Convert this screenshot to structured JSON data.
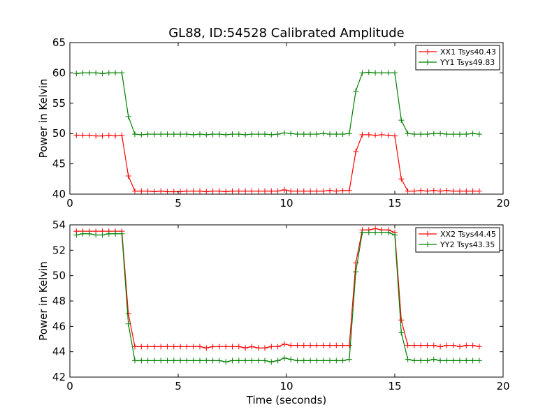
{
  "chart_data": [
    {
      "type": "line",
      "title": "GL88, ID:54528 Calibrated Amplitude",
      "xlabel": "",
      "ylabel": "Power in Kelvin",
      "xlim": [
        0,
        20
      ],
      "ylim": [
        40,
        65
      ],
      "xticks": [
        "0",
        "5",
        "10",
        "15",
        "20"
      ],
      "yticks": [
        "40",
        "45",
        "50",
        "55",
        "60",
        "65"
      ],
      "legend_position": "top-right",
      "grid": false,
      "series": [
        {
          "name": "XX1 Tsys40.43",
          "color": "#ff0000",
          "x": [
            0.3,
            0.6,
            0.9,
            1.2,
            1.5,
            1.8,
            2.1,
            2.4,
            2.7,
            3.0,
            3.3,
            3.6,
            3.9,
            4.2,
            4.5,
            4.8,
            5.1,
            5.4,
            5.7,
            6.0,
            6.3,
            6.6,
            6.9,
            7.2,
            7.5,
            7.8,
            8.1,
            8.4,
            8.7,
            9.0,
            9.3,
            9.6,
            9.9,
            10.2,
            10.5,
            10.8,
            11.1,
            11.4,
            11.7,
            12.0,
            12.3,
            12.6,
            12.9,
            13.2,
            13.5,
            13.8,
            14.1,
            14.4,
            14.7,
            15.0,
            15.3,
            15.6,
            15.9,
            16.2,
            16.5,
            16.8,
            17.1,
            17.4,
            17.7,
            18.0,
            18.3,
            18.6,
            18.9
          ],
          "values": [
            49.7,
            49.7,
            49.7,
            49.6,
            49.6,
            49.7,
            49.6,
            49.7,
            43.0,
            40.5,
            40.5,
            40.5,
            40.4,
            40.5,
            40.4,
            40.4,
            40.4,
            40.5,
            40.5,
            40.5,
            40.4,
            40.5,
            40.5,
            40.4,
            40.5,
            40.5,
            40.5,
            40.5,
            40.5,
            40.5,
            40.5,
            40.5,
            40.7,
            40.5,
            40.5,
            40.5,
            40.5,
            40.5,
            40.5,
            40.6,
            40.5,
            40.6,
            40.6,
            47.0,
            49.8,
            49.8,
            49.7,
            49.8,
            49.7,
            49.6,
            42.5,
            40.5,
            40.5,
            40.6,
            40.5,
            40.6,
            40.5,
            40.6,
            40.5,
            40.5,
            40.5,
            40.5,
            40.5
          ]
        },
        {
          "name": "YY1 Tsys49.83",
          "color": "#008000",
          "x": [
            0.3,
            0.6,
            0.9,
            1.2,
            1.5,
            1.8,
            2.1,
            2.4,
            2.7,
            3.0,
            3.3,
            3.6,
            3.9,
            4.2,
            4.5,
            4.8,
            5.1,
            5.4,
            5.7,
            6.0,
            6.3,
            6.6,
            6.9,
            7.2,
            7.5,
            7.8,
            8.1,
            8.4,
            8.7,
            9.0,
            9.3,
            9.6,
            9.9,
            10.2,
            10.5,
            10.8,
            11.1,
            11.4,
            11.7,
            12.0,
            12.3,
            12.6,
            12.9,
            13.2,
            13.5,
            13.8,
            14.1,
            14.4,
            14.7,
            15.0,
            15.3,
            15.6,
            15.9,
            16.2,
            16.5,
            16.8,
            17.1,
            17.4,
            17.7,
            18.0,
            18.3,
            18.6,
            18.9
          ],
          "values": [
            59.9,
            60.0,
            60.0,
            60.0,
            59.9,
            60.0,
            60.0,
            60.0,
            52.8,
            49.9,
            49.8,
            49.9,
            49.9,
            49.9,
            49.9,
            49.9,
            49.9,
            49.9,
            49.8,
            49.9,
            49.8,
            49.9,
            49.9,
            49.8,
            49.9,
            49.9,
            49.8,
            49.9,
            49.9,
            49.9,
            49.8,
            49.9,
            50.1,
            50.0,
            49.9,
            49.9,
            49.9,
            49.9,
            50.0,
            49.9,
            49.9,
            49.9,
            50.0,
            57.0,
            60.0,
            60.1,
            60.0,
            60.0,
            60.0,
            60.0,
            52.2,
            50.0,
            49.9,
            49.9,
            49.9,
            50.0,
            50.0,
            49.9,
            49.9,
            49.9,
            49.9,
            50.0,
            49.9
          ]
        }
      ]
    },
    {
      "type": "line",
      "title": "",
      "xlabel": "Time (seconds)",
      "ylabel": "Power in Kelvin",
      "xlim": [
        0,
        20
      ],
      "ylim": [
        42,
        54
      ],
      "xticks": [
        "0",
        "5",
        "10",
        "15",
        "20"
      ],
      "yticks": [
        "42",
        "44",
        "46",
        "48",
        "50",
        "52",
        "54"
      ],
      "legend_position": "top-right",
      "grid": false,
      "series": [
        {
          "name": "XX2 Tsys44.45",
          "color": "#ff0000",
          "x": [
            0.3,
            0.6,
            0.9,
            1.2,
            1.5,
            1.8,
            2.1,
            2.4,
            2.7,
            3.0,
            3.3,
            3.6,
            3.9,
            4.2,
            4.5,
            4.8,
            5.1,
            5.4,
            5.7,
            6.0,
            6.3,
            6.6,
            6.9,
            7.2,
            7.5,
            7.8,
            8.1,
            8.4,
            8.7,
            9.0,
            9.3,
            9.6,
            9.9,
            10.2,
            10.5,
            10.8,
            11.1,
            11.4,
            11.7,
            12.0,
            12.3,
            12.6,
            12.9,
            13.2,
            13.5,
            13.8,
            14.1,
            14.4,
            14.7,
            15.0,
            15.3,
            15.6,
            15.9,
            16.2,
            16.5,
            16.8,
            17.1,
            17.4,
            17.7,
            18.0,
            18.3,
            18.6,
            18.9
          ],
          "values": [
            53.5,
            53.5,
            53.5,
            53.5,
            53.5,
            53.5,
            53.5,
            53.5,
            47.0,
            44.4,
            44.4,
            44.4,
            44.4,
            44.4,
            44.4,
            44.4,
            44.4,
            44.4,
            44.4,
            44.4,
            44.3,
            44.4,
            44.4,
            44.4,
            44.4,
            44.4,
            44.3,
            44.4,
            44.3,
            44.3,
            44.4,
            44.4,
            44.6,
            44.5,
            44.5,
            44.5,
            44.5,
            44.5,
            44.5,
            44.5,
            44.5,
            44.5,
            44.5,
            51.0,
            53.6,
            53.6,
            53.7,
            53.6,
            53.6,
            53.4,
            46.5,
            44.5,
            44.5,
            44.5,
            44.5,
            44.5,
            44.4,
            44.5,
            44.5,
            44.4,
            44.5,
            44.5,
            44.4
          ]
        },
        {
          "name": "YY2 Tsys43.35",
          "color": "#008000",
          "x": [
            0.3,
            0.6,
            0.9,
            1.2,
            1.5,
            1.8,
            2.1,
            2.4,
            2.7,
            3.0,
            3.3,
            3.6,
            3.9,
            4.2,
            4.5,
            4.8,
            5.1,
            5.4,
            5.7,
            6.0,
            6.3,
            6.6,
            6.9,
            7.2,
            7.5,
            7.8,
            8.1,
            8.4,
            8.7,
            9.0,
            9.3,
            9.6,
            9.9,
            10.2,
            10.5,
            10.8,
            11.1,
            11.4,
            11.7,
            12.0,
            12.3,
            12.6,
            12.9,
            13.2,
            13.5,
            13.8,
            14.1,
            14.4,
            14.7,
            15.0,
            15.3,
            15.6,
            15.9,
            16.2,
            16.5,
            16.8,
            17.1,
            17.4,
            17.7,
            18.0,
            18.3,
            18.6,
            18.9
          ],
          "values": [
            53.2,
            53.3,
            53.3,
            53.2,
            53.2,
            53.3,
            53.3,
            53.3,
            46.2,
            43.3,
            43.3,
            43.3,
            43.3,
            43.3,
            43.3,
            43.3,
            43.3,
            43.3,
            43.3,
            43.3,
            43.3,
            43.3,
            43.3,
            43.2,
            43.3,
            43.3,
            43.3,
            43.3,
            43.3,
            43.3,
            43.2,
            43.3,
            43.5,
            43.4,
            43.3,
            43.3,
            43.3,
            43.3,
            43.3,
            43.3,
            43.3,
            43.3,
            43.4,
            50.3,
            53.4,
            53.4,
            53.4,
            53.4,
            53.4,
            53.2,
            45.5,
            43.4,
            43.3,
            43.3,
            43.3,
            43.4,
            43.3,
            43.3,
            43.3,
            43.3,
            43.3,
            43.3,
            43.3
          ]
        }
      ]
    }
  ]
}
